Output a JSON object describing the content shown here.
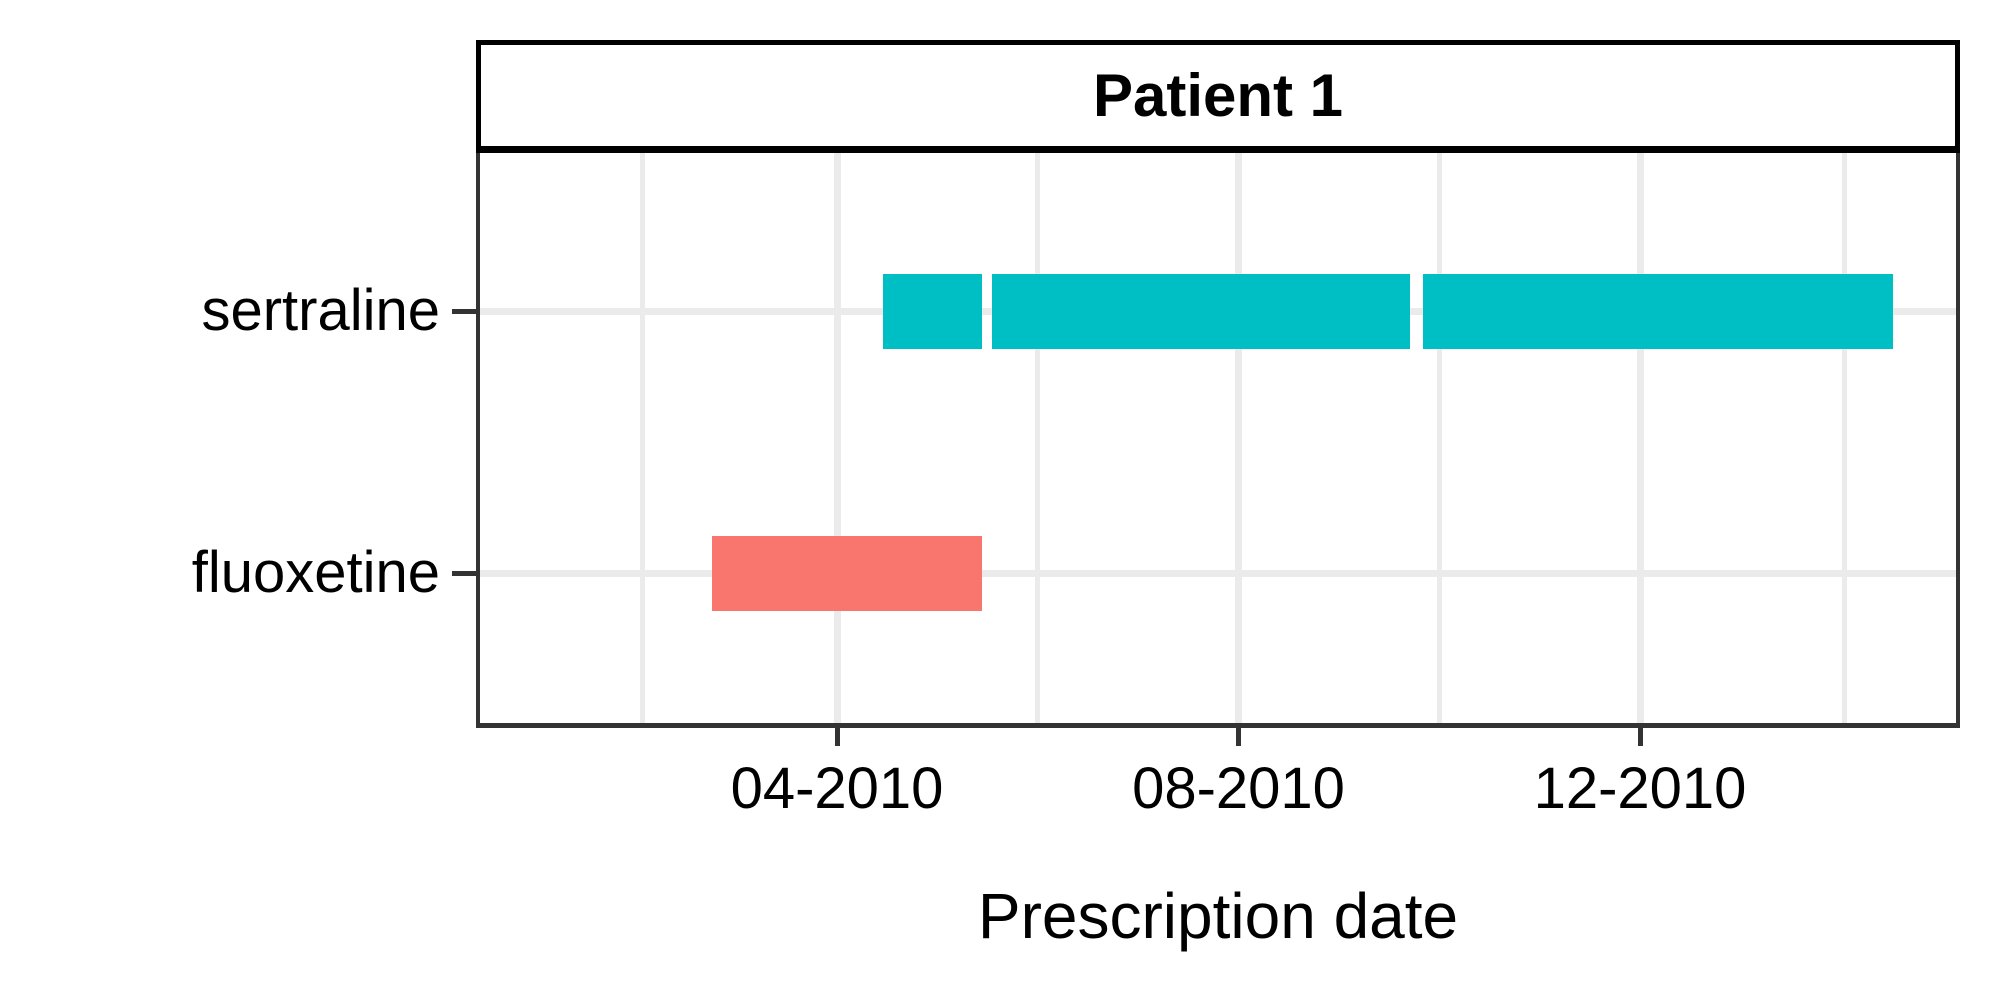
{
  "figure": {
    "background": "#ffffff"
  },
  "chart_data": {
    "type": "bar",
    "subtype": "horizontal-interval-timeline",
    "facet_title": "Patient 1",
    "xlabel": "Prescription date",
    "ylabel": "",
    "y_categories": [
      "sertraline",
      "fluoxetine"
    ],
    "x_major_ticks": [
      {
        "label": "04-2010",
        "date": "2010-04-01"
      },
      {
        "label": "08-2010",
        "date": "2010-08-01"
      },
      {
        "label": "12-2010",
        "date": "2010-12-01"
      }
    ],
    "x_minor_gridlines": [
      "2010-02-01",
      "2010-06-01",
      "2010-10-01",
      "2011-02-01"
    ],
    "x_range_approx": [
      "2009-12-15",
      "2011-03-05"
    ],
    "grid": "vertical major+minor, horizontal major at category centers",
    "legend": "none",
    "series": [
      {
        "name": "sertraline",
        "color": "#00BFC4",
        "intervals": [
          {
            "start": "2010-04-15",
            "end": "2010-05-15"
          },
          {
            "start": "2010-05-18",
            "end": "2010-09-22"
          },
          {
            "start": "2010-09-26",
            "end": "2011-02-16"
          }
        ]
      },
      {
        "name": "fluoxetine",
        "color": "#F8766D",
        "intervals": [
          {
            "start": "2010-02-22",
            "end": "2010-05-15"
          }
        ]
      }
    ],
    "colors": {
      "bar_teal": "#00BFC4",
      "bar_salmon": "#F8766D",
      "gridline": "#EBEBEB",
      "panel_border": "#333333",
      "strip_border": "#000000",
      "tick_mark": "#333333",
      "text": "#000000"
    }
  }
}
